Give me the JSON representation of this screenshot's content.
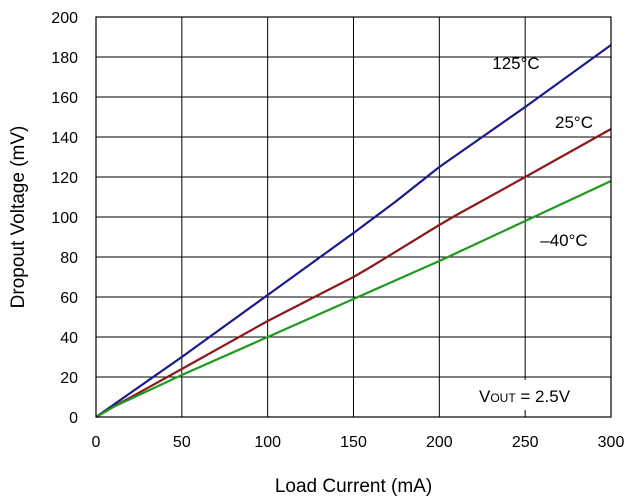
{
  "chart_data": {
    "type": "line",
    "title": "",
    "xlabel": "Load Current (mA)",
    "ylabel": "Dropout Voltage (mV)",
    "xlim": [
      0,
      300
    ],
    "ylim": [
      0,
      200
    ],
    "xticks": [
      0,
      50,
      100,
      150,
      200,
      250,
      300
    ],
    "yticks": [
      0,
      20,
      40,
      60,
      80,
      100,
      120,
      140,
      160,
      180,
      200
    ],
    "grid": true,
    "legend": "inline labels at right",
    "series": [
      {
        "name": "125°C",
        "color": "#1a1a8c",
        "x": [
          0,
          10,
          50,
          100,
          150,
          175,
          200,
          250,
          300
        ],
        "y": [
          0,
          6,
          30,
          61,
          92,
          108,
          125,
          155,
          186
        ]
      },
      {
        "name": "25°C",
        "color": "#8b1a1a",
        "x": [
          0,
          10,
          50,
          100,
          150,
          160,
          200,
          210,
          250,
          300
        ],
        "y": [
          0,
          5,
          24,
          48,
          70,
          75,
          96,
          101,
          120,
          144
        ]
      },
      {
        "name": "–40°C",
        "color": "#1f9a1f",
        "x": [
          0,
          10,
          50,
          100,
          150,
          200,
          250,
          300
        ],
        "y": [
          0,
          5,
          21,
          40,
          59,
          78,
          98,
          118
        ]
      }
    ],
    "annotation": {
      "prefix": "V",
      "subscript": "OUT",
      "suffix": " = 2.5V"
    }
  }
}
